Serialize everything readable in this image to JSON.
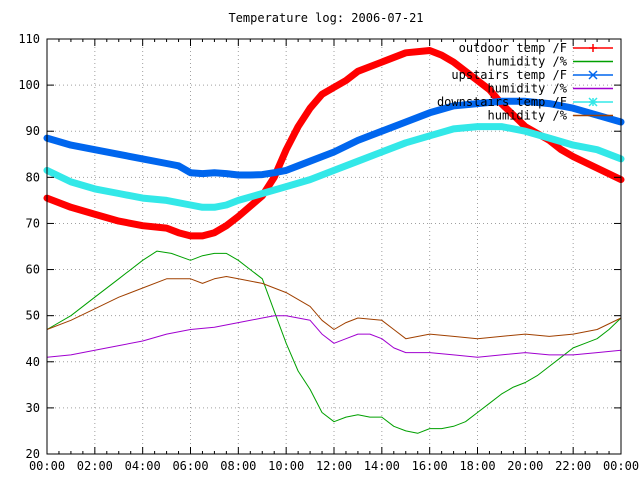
{
  "chart_data": {
    "type": "line",
    "title": "Temperature log: 2006-07-21",
    "xlabel": "",
    "ylabel": "",
    "x_range": [
      "00:00",
      "24:00"
    ],
    "ylim": [
      20,
      110
    ],
    "grid": true,
    "legend_position": "top-right",
    "x_ticks": [
      "00:00",
      "02:00",
      "04:00",
      "06:00",
      "08:00",
      "10:00",
      "12:00",
      "14:00",
      "16:00",
      "18:00",
      "20:00",
      "22:00",
      "00:00"
    ],
    "y_ticks": [
      "20",
      "30",
      "40",
      "50",
      "60",
      "70",
      "80",
      "90",
      "100",
      "110"
    ],
    "series": [
      {
        "name": "outdoor temp /F",
        "color": "#ff0000",
        "marker": "plus",
        "line_width": 7,
        "points": [
          [
            0,
            75.5
          ],
          [
            1,
            73.5
          ],
          [
            2,
            72
          ],
          [
            3,
            70.5
          ],
          [
            4,
            69.5
          ],
          [
            5,
            69
          ],
          [
            5.5,
            68
          ],
          [
            6,
            67.3
          ],
          [
            6.5,
            67.3
          ],
          [
            7,
            68
          ],
          [
            7.5,
            69.5
          ],
          [
            8,
            71.5
          ],
          [
            9,
            76
          ],
          [
            9.5,
            80
          ],
          [
            10,
            86
          ],
          [
            10.5,
            91
          ],
          [
            11,
            95
          ],
          [
            11.5,
            98
          ],
          [
            12,
            99.5
          ],
          [
            12.5,
            101
          ],
          [
            13,
            103
          ],
          [
            14,
            105
          ],
          [
            15,
            107
          ],
          [
            16,
            107.5
          ],
          [
            16.5,
            106.5
          ],
          [
            17,
            105
          ],
          [
            17.5,
            103
          ],
          [
            18,
            101
          ],
          [
            18.5,
            99
          ],
          [
            19,
            96
          ],
          [
            19.5,
            93.5
          ],
          [
            20,
            91
          ],
          [
            21,
            88
          ],
          [
            21.5,
            86
          ],
          [
            22,
            84.5
          ],
          [
            23,
            82
          ],
          [
            24,
            79.5
          ]
        ]
      },
      {
        "name": "humidity /%",
        "color": "#00a000",
        "marker": "none",
        "line_width": 1,
        "points": [
          [
            0,
            47
          ],
          [
            1,
            50
          ],
          [
            2,
            54
          ],
          [
            3,
            58
          ],
          [
            4,
            62
          ],
          [
            4.6,
            64
          ],
          [
            5.2,
            63.5
          ],
          [
            6,
            62
          ],
          [
            6.5,
            63
          ],
          [
            7,
            63.5
          ],
          [
            7.5,
            63.5
          ],
          [
            8,
            62
          ],
          [
            8.5,
            60
          ],
          [
            9,
            58
          ],
          [
            9.5,
            51
          ],
          [
            10,
            44
          ],
          [
            10.5,
            38
          ],
          [
            11,
            34
          ],
          [
            11.5,
            29
          ],
          [
            12,
            27
          ],
          [
            12.5,
            28
          ],
          [
            13,
            28.5
          ],
          [
            13.5,
            28
          ],
          [
            14,
            28
          ],
          [
            14.5,
            26
          ],
          [
            15,
            25
          ],
          [
            15.5,
            24.5
          ],
          [
            16,
            25.5
          ],
          [
            16.5,
            25.5
          ],
          [
            17,
            26
          ],
          [
            17.5,
            27
          ],
          [
            18,
            29
          ],
          [
            18.5,
            31
          ],
          [
            19,
            33
          ],
          [
            19.5,
            34.5
          ],
          [
            20,
            35.5
          ],
          [
            20.5,
            37
          ],
          [
            21,
            39
          ],
          [
            21.5,
            41
          ],
          [
            22,
            43
          ],
          [
            22.5,
            44
          ],
          [
            23,
            45
          ],
          [
            23.5,
            47
          ],
          [
            24,
            49.5
          ]
        ]
      },
      {
        "name": "upstairs temp /F",
        "color": "#0066ee",
        "marker": "cross",
        "line_width": 7,
        "points": [
          [
            0,
            88.5
          ],
          [
            1,
            87
          ],
          [
            2,
            86
          ],
          [
            3,
            85
          ],
          [
            4,
            84
          ],
          [
            5,
            83
          ],
          [
            5.5,
            82.5
          ],
          [
            6,
            81
          ],
          [
            6.5,
            80.8
          ],
          [
            7,
            81
          ],
          [
            7.5,
            80.8
          ],
          [
            8,
            80.5
          ],
          [
            8.5,
            80.5
          ],
          [
            9,
            80.6
          ],
          [
            9.5,
            81
          ],
          [
            10,
            81.5
          ],
          [
            10.5,
            82.5
          ],
          [
            11,
            83.5
          ],
          [
            12,
            85.5
          ],
          [
            13,
            88
          ],
          [
            14,
            90
          ],
          [
            15,
            92
          ],
          [
            16,
            94
          ],
          [
            17,
            95.5
          ],
          [
            18,
            96
          ],
          [
            19,
            96.5
          ],
          [
            20,
            96.5
          ],
          [
            21,
            96
          ],
          [
            22,
            95
          ],
          [
            23,
            93.5
          ],
          [
            24,
            92
          ]
        ]
      },
      {
        "name": "humidity /%",
        "color": "#a000d0",
        "marker": "none",
        "line_width": 1,
        "points": [
          [
            0,
            41
          ],
          [
            1,
            41.5
          ],
          [
            2,
            42.5
          ],
          [
            3,
            43.5
          ],
          [
            4,
            44.5
          ],
          [
            5,
            46
          ],
          [
            6,
            47
          ],
          [
            7,
            47.5
          ],
          [
            8,
            48.5
          ],
          [
            9,
            49.5
          ],
          [
            9.5,
            50
          ],
          [
            10,
            50
          ],
          [
            11,
            49
          ],
          [
            11.5,
            46
          ],
          [
            12,
            44
          ],
          [
            12.5,
            45
          ],
          [
            13,
            46
          ],
          [
            13.5,
            46
          ],
          [
            14,
            45
          ],
          [
            14.5,
            43
          ],
          [
            15,
            42
          ],
          [
            16,
            42
          ],
          [
            17,
            41.5
          ],
          [
            18,
            41
          ],
          [
            19,
            41.5
          ],
          [
            20,
            42
          ],
          [
            21,
            41.5
          ],
          [
            22,
            41.5
          ],
          [
            23,
            42
          ],
          [
            24,
            42.5
          ]
        ]
      },
      {
        "name": "downstairs temp /F",
        "color": "#33e8e8",
        "marker": "star",
        "line_width": 7,
        "points": [
          [
            0,
            81.5
          ],
          [
            1,
            79
          ],
          [
            2,
            77.5
          ],
          [
            3,
            76.5
          ],
          [
            4,
            75.5
          ],
          [
            5,
            75
          ],
          [
            6,
            74
          ],
          [
            6.5,
            73.5
          ],
          [
            7,
            73.5
          ],
          [
            7.5,
            74
          ],
          [
            8,
            75
          ],
          [
            9,
            76.5
          ],
          [
            10,
            78
          ],
          [
            11,
            79.5
          ],
          [
            12,
            81.5
          ],
          [
            13,
            83.5
          ],
          [
            14,
            85.5
          ],
          [
            15,
            87.5
          ],
          [
            16,
            89
          ],
          [
            17,
            90.5
          ],
          [
            18,
            91
          ],
          [
            19,
            91
          ],
          [
            20,
            90
          ],
          [
            21,
            88.5
          ],
          [
            22,
            87
          ],
          [
            23,
            86
          ],
          [
            24,
            84
          ]
        ]
      },
      {
        "name": "humidity /%",
        "color": "#a04000",
        "marker": "none",
        "line_width": 1,
        "points": [
          [
            0,
            47
          ],
          [
            1,
            49
          ],
          [
            2,
            51.5
          ],
          [
            3,
            54
          ],
          [
            4,
            56
          ],
          [
            5,
            58
          ],
          [
            6,
            58
          ],
          [
            6.5,
            57
          ],
          [
            7,
            58
          ],
          [
            7.5,
            58.5
          ],
          [
            8,
            58
          ],
          [
            9,
            57
          ],
          [
            10,
            55
          ],
          [
            11,
            52
          ],
          [
            11.5,
            49
          ],
          [
            12,
            47
          ],
          [
            12.5,
            48.5
          ],
          [
            13,
            49.5
          ],
          [
            14,
            49
          ],
          [
            14.5,
            47
          ],
          [
            15,
            45
          ],
          [
            16,
            46
          ],
          [
            17,
            45.5
          ],
          [
            18,
            45
          ],
          [
            19,
            45.5
          ],
          [
            20,
            46
          ],
          [
            21,
            45.5
          ],
          [
            22,
            46
          ],
          [
            23,
            47
          ],
          [
            24,
            49.5
          ]
        ]
      }
    ]
  }
}
